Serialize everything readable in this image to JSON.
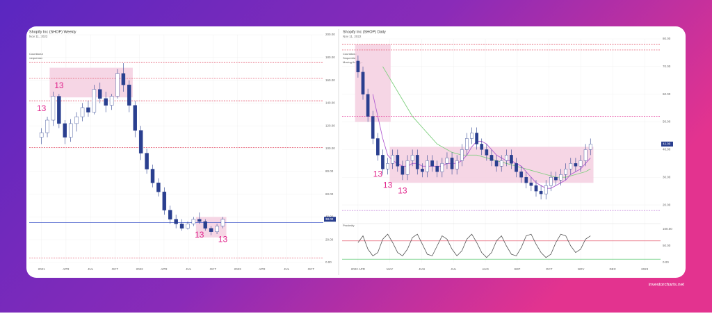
{
  "chart_data": [
    {
      "type": "candlestick",
      "title": "Shopify Inc (SHOP) Weekly",
      "date": "Nov 11, 2022",
      "legend": [
        "Countdown",
        "Sequential"
      ],
      "x_labels": [
        "2021",
        "APR",
        "JUL",
        "OCT",
        "2022",
        "APR",
        "JUL",
        "OCT",
        "2023",
        "APR",
        "JUL",
        "OCT"
      ],
      "open": [
        110,
        114,
        125,
        146,
        122,
        110,
        122,
        128,
        136,
        132,
        152,
        144,
        138,
        146,
        166,
        156,
        138,
        116,
        96,
        82,
        70,
        62,
        46,
        38,
        34,
        30,
        34,
        38,
        36,
        30,
        27,
        32
      ],
      "high": [
        118,
        128,
        150,
        148,
        125,
        126,
        132,
        140,
        142,
        156,
        158,
        150,
        148,
        170,
        175,
        160,
        142,
        120,
        100,
        86,
        74,
        66,
        50,
        42,
        38,
        36,
        40,
        44,
        38,
        32,
        34,
        40
      ],
      "low": [
        104,
        110,
        120,
        118,
        104,
        106,
        115,
        124,
        128,
        130,
        140,
        132,
        134,
        144,
        150,
        132,
        110,
        90,
        78,
        66,
        58,
        42,
        34,
        30,
        28,
        29,
        32,
        34,
        28,
        24,
        25,
        30
      ],
      "close": [
        114,
        125,
        146,
        122,
        110,
        122,
        128,
        136,
        132,
        152,
        144,
        138,
        146,
        166,
        156,
        138,
        116,
        96,
        82,
        70,
        62,
        46,
        38,
        34,
        30,
        34,
        38,
        36,
        30,
        27,
        32,
        38
      ],
      "up_color": "#ffffff",
      "down_color": "#2a3f8f",
      "grid": true,
      "ylim": [
        0,
        200
      ],
      "yticks": [
        {
          "value": 0,
          "label": "0.00"
        },
        {
          "value": 20,
          "label": "20.00"
        },
        {
          "value": 40,
          "label": "40.00"
        },
        {
          "value": 60,
          "label": "60.00"
        },
        {
          "value": 80,
          "label": "80.00"
        },
        {
          "value": 100,
          "label": "100.00"
        },
        {
          "value": 120,
          "label": "120.00"
        },
        {
          "value": 140,
          "label": "140.00"
        },
        {
          "value": 160,
          "label": "160.00"
        },
        {
          "value": 180,
          "label": "180.00"
        },
        {
          "value": 200,
          "label": "200.00"
        }
      ],
      "zone_color": "#f5cfe0",
      "zones": [
        {
          "low": 145,
          "high": 171,
          "start": 2,
          "end": 15
        },
        {
          "low": 22,
          "high": 40,
          "start": 27,
          "end": 31
        }
      ],
      "levels": [
        {
          "value": 176,
          "color": "#e0415a",
          "style": "dashed"
        },
        {
          "value": 162,
          "color": "#e0415a",
          "style": "dashed"
        },
        {
          "value": 142,
          "color": "#e0415a",
          "style": "dashed"
        },
        {
          "value": 101,
          "color": "#e0415a",
          "style": "dashed"
        },
        {
          "value": 35,
          "color": "#3b55c9",
          "style": "solid"
        },
        {
          "value": 4,
          "color": "#e0415a",
          "style": "dashed"
        }
      ],
      "annotation_color": "#e0218a",
      "annotations": [
        {
          "text": "13",
          "candle": 0,
          "price": 135
        },
        {
          "text": "13",
          "candle": 3,
          "price": 155
        },
        {
          "text": "13",
          "candle": 27,
          "price": 24
        },
        {
          "text": "13",
          "candle": 31,
          "price": 20
        }
      ],
      "last": {
        "value": 38,
        "label": "38.00",
        "color": "#2a3f8f"
      }
    },
    {
      "type": "candlestick",
      "title": "Shopify Inc (SHOP) Daily",
      "date": "Nov 11, 2022",
      "legend": [
        "Countdown",
        "Sequential",
        "Moving Average"
      ],
      "x_labels": [
        "2022 APR",
        "MAY",
        "JUN",
        "JUL",
        "AUG",
        "SEP",
        "OCT",
        "NOV",
        "DEC",
        "2023"
      ],
      "open": [
        72,
        68,
        60,
        52,
        44,
        38,
        33,
        35,
        38,
        34,
        31,
        36,
        38,
        33,
        32,
        36,
        34,
        32,
        35,
        37,
        33,
        36,
        40,
        44,
        46,
        42,
        40,
        38,
        36,
        34,
        36,
        38,
        35,
        32,
        30,
        28,
        27,
        25,
        24,
        27,
        30,
        29,
        31,
        33,
        35,
        34,
        36,
        40
      ],
      "high": [
        74,
        70,
        62,
        54,
        46,
        40,
        37,
        40,
        40,
        36,
        38,
        40,
        40,
        35,
        38,
        38,
        36,
        37,
        39,
        39,
        38,
        42,
        46,
        48,
        48,
        44,
        42,
        40,
        38,
        38,
        40,
        40,
        37,
        34,
        32,
        30,
        29,
        27,
        29,
        32,
        32,
        33,
        35,
        37,
        37,
        38,
        42,
        44
      ],
      "low": [
        66,
        58,
        50,
        42,
        36,
        31,
        31,
        33,
        32,
        29,
        29,
        34,
        31,
        30,
        30,
        32,
        30,
        30,
        33,
        31,
        31,
        34,
        38,
        42,
        40,
        38,
        36,
        34,
        32,
        32,
        34,
        33,
        30,
        28,
        26,
        25,
        23,
        22,
        22,
        25,
        27,
        27,
        29,
        31,
        32,
        32,
        34,
        38
      ],
      "close": [
        68,
        60,
        52,
        44,
        38,
        33,
        35,
        38,
        34,
        31,
        36,
        38,
        33,
        32,
        36,
        34,
        32,
        35,
        37,
        33,
        36,
        40,
        44,
        46,
        42,
        40,
        38,
        36,
        34,
        36,
        38,
        35,
        32,
        30,
        28,
        27,
        25,
        24,
        27,
        30,
        29,
        31,
        33,
        35,
        34,
        36,
        40,
        42
      ],
      "up_color": "#ffffff",
      "down_color": "#2a3f8f",
      "grid": true,
      "ylim": [
        15,
        80
      ],
      "yticks": [
        {
          "value": 20,
          "label": "20.00"
        },
        {
          "value": 30,
          "label": "30.00"
        },
        {
          "value": 40,
          "label": "40.00"
        },
        {
          "value": 50,
          "label": "50.00"
        },
        {
          "value": 60,
          "label": "60.00"
        },
        {
          "value": 70,
          "label": "70.00"
        },
        {
          "value": 80,
          "label": "80.00"
        }
      ],
      "moving_averages": [
        {
          "color": "#7fcf7f",
          "values": [
            null,
            null,
            null,
            null,
            null,
            70,
            67,
            64,
            61,
            58,
            55,
            52,
            50,
            48,
            46,
            44,
            42,
            41,
            40,
            39,
            38.5,
            38,
            38,
            38,
            38,
            37.5,
            37,
            36.5,
            36,
            35.5,
            35,
            34.5,
            34,
            33.5,
            33,
            32.5,
            32,
            31.5,
            31,
            30.5,
            30,
            30,
            30,
            30.5,
            31,
            31.5,
            32,
            33
          ]
        },
        {
          "color": "#b05ad0",
          "values": [
            null,
            null,
            null,
            60,
            52,
            44,
            38,
            36,
            35,
            34,
            34,
            35,
            35,
            34,
            34,
            34,
            34,
            34,
            35,
            35,
            35,
            36,
            38,
            41,
            43,
            43,
            42,
            40,
            38,
            37,
            36,
            36,
            35,
            34,
            32,
            30,
            28,
            27,
            26,
            26,
            27,
            28,
            29,
            31,
            32,
            33,
            35,
            37
          ]
        }
      ],
      "zone_color": "#f5cfe0",
      "zones": [
        {
          "low": 50,
          "high": 78,
          "start": 0,
          "end": 6
        },
        {
          "low": 28,
          "high": 41,
          "start": 7,
          "end": 47
        }
      ],
      "levels": [
        {
          "value": 78,
          "color": "#e0415a",
          "style": "dashed"
        },
        {
          "value": 76,
          "color": "#e0415a",
          "style": "dashed"
        },
        {
          "value": 52,
          "color": "#e0218a",
          "style": "dashed"
        },
        {
          "value": 18,
          "color": "#b05ad0",
          "style": "dashed"
        }
      ],
      "annotation_color": "#e0218a",
      "annotations": [
        {
          "text": "13",
          "candle": 4,
          "price": 31
        },
        {
          "text": "13",
          "candle": 6,
          "price": 27
        },
        {
          "text": "13",
          "candle": 9,
          "price": 25
        }
      ],
      "last": {
        "value": 42,
        "label": "42.00",
        "color": "#2a3f8f"
      },
      "indicator": {
        "name": "Proximity",
        "color": "#555555",
        "ylim": [
          0,
          100
        ],
        "yticks": [
          {
            "value": 0,
            "label": "0.00"
          },
          {
            "value": 50,
            "label": "50.00"
          },
          {
            "value": 100,
            "label": "100.00"
          }
        ],
        "values": [
          60,
          80,
          40,
          20,
          30,
          70,
          85,
          60,
          30,
          20,
          40,
          75,
          85,
          55,
          25,
          20,
          50,
          80,
          70,
          40,
          20,
          35,
          70,
          85,
          60,
          30,
          15,
          30,
          65,
          80,
          50,
          25,
          20,
          45,
          80,
          85,
          55,
          30,
          15,
          25,
          60,
          85,
          80,
          50,
          30,
          40,
          70,
          80
        ],
        "levels": [
          {
            "value": 65,
            "color": "#e0415a"
          },
          {
            "value": 10,
            "color": "#3fbf5a"
          }
        ]
      }
    }
  ],
  "footer": "investorcharts.net"
}
